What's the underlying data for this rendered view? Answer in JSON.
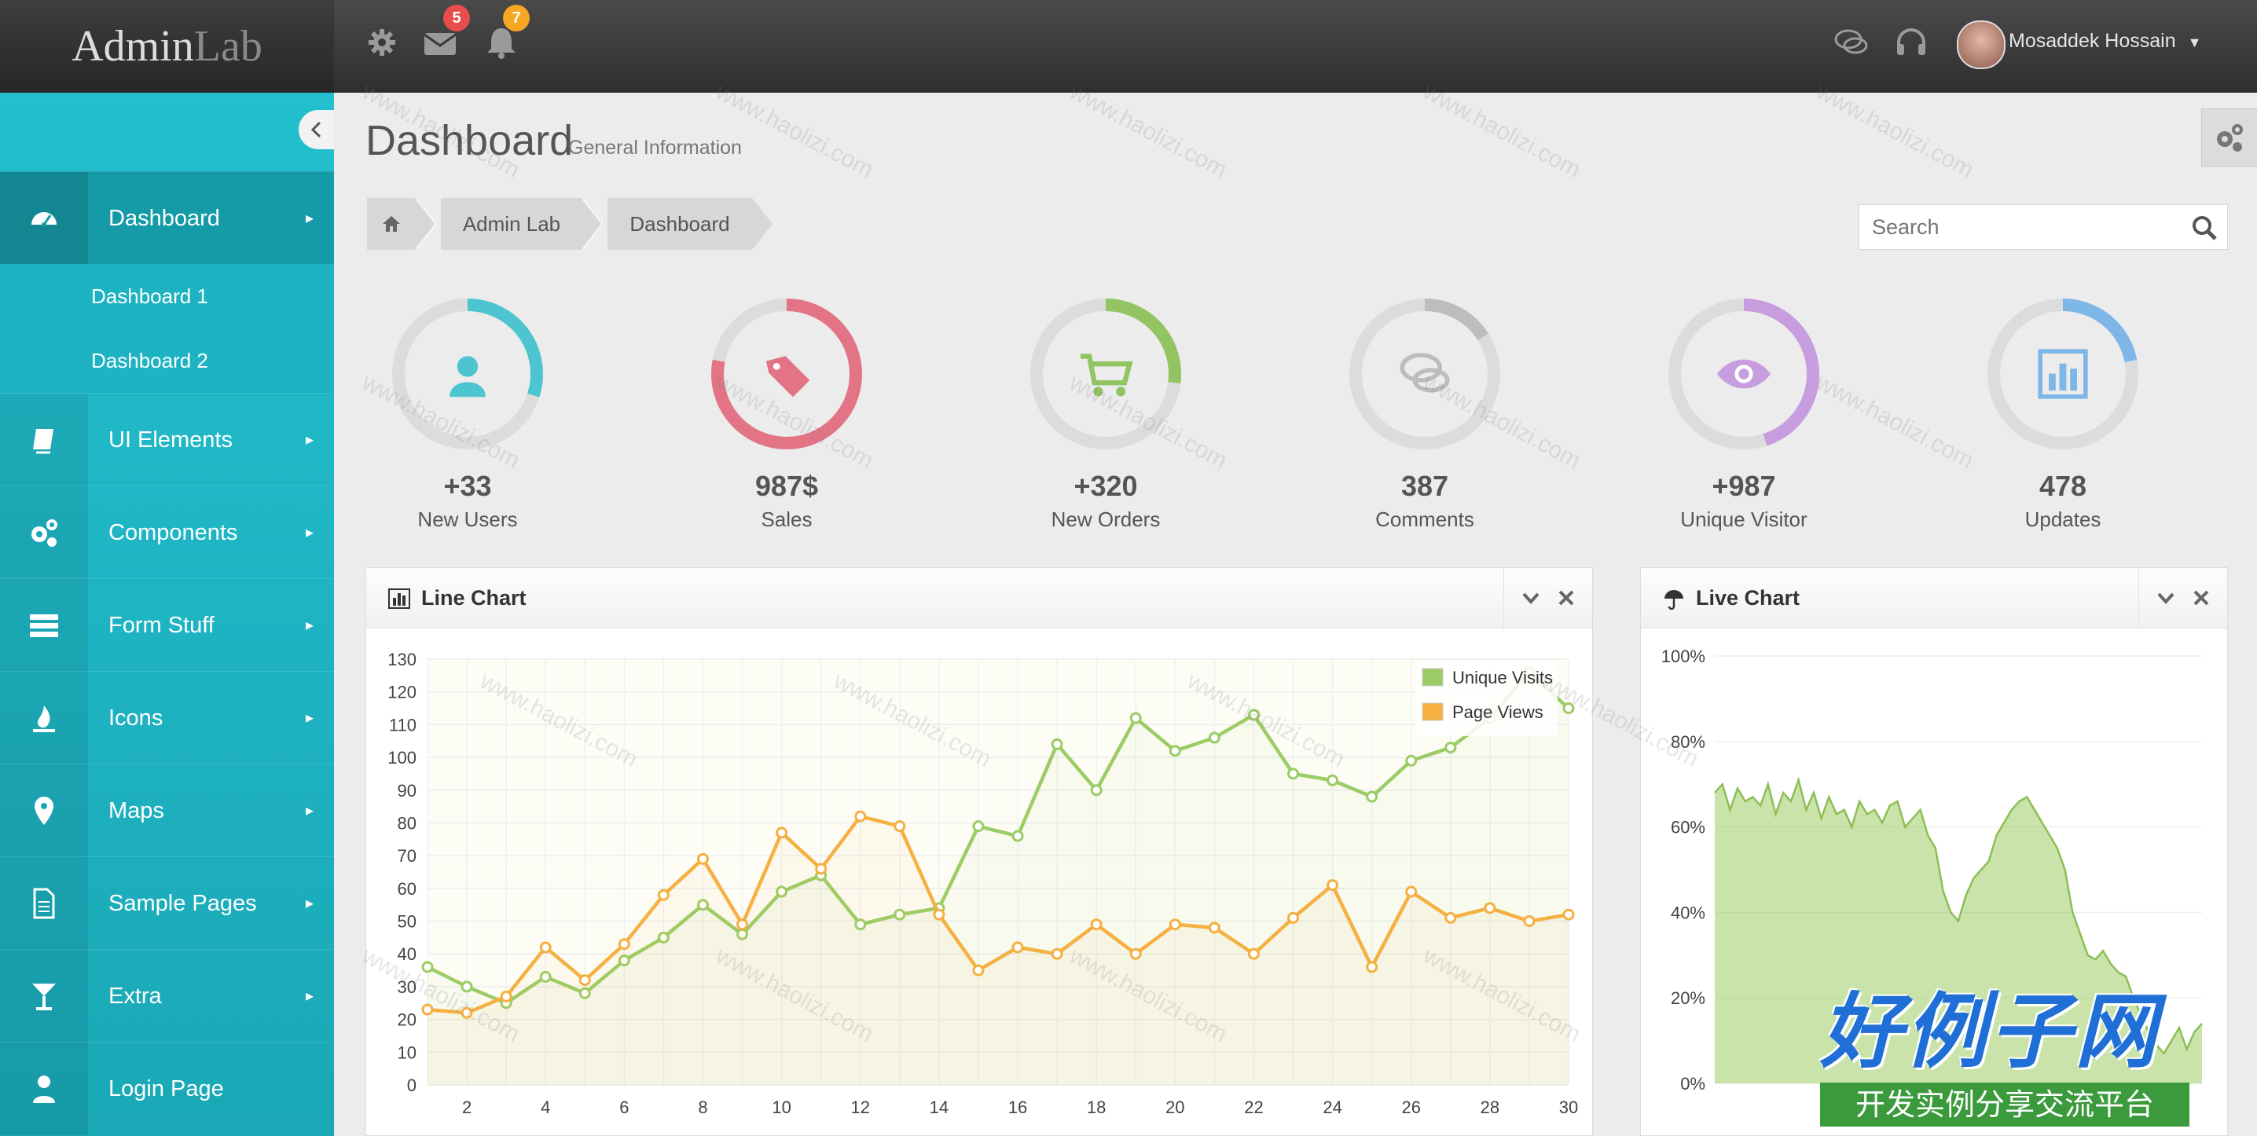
{
  "app": {
    "logo_main": "Admin",
    "logo_accent": "Lab"
  },
  "topbar": {
    "mail_count": "5",
    "notification_count": "7",
    "user_name": "Mosaddek Hossain"
  },
  "sidebar": {
    "items": [
      {
        "label": "Dashboard",
        "icon": "dashboard-icon"
      },
      {
        "label": "UI Elements",
        "icon": "book-icon"
      },
      {
        "label": "Components",
        "icon": "cogs-icon"
      },
      {
        "label": "Form Stuff",
        "icon": "tasks-icon"
      },
      {
        "label": "Icons",
        "icon": "fire-icon"
      },
      {
        "label": "Maps",
        "icon": "map-marker-icon"
      },
      {
        "label": "Sample Pages",
        "icon": "file-icon"
      },
      {
        "label": "Extra",
        "icon": "glass-icon"
      },
      {
        "label": "Login Page",
        "icon": "user-icon"
      }
    ],
    "sub_items": [
      "Dashboard 1",
      "Dashboard 2"
    ],
    "arrow": "▸"
  },
  "page": {
    "title": "Dashboard",
    "subtitle": "General Information"
  },
  "breadcrumb": [
    "Admin Lab",
    "Dashboard"
  ],
  "search": {
    "placeholder": "Search",
    "value": "Search"
  },
  "stats": [
    {
      "value": "+33",
      "label": "New Users",
      "color": "#4cc5d1",
      "fraction": 0.3
    },
    {
      "value": "987$",
      "label": "Sales",
      "color": "#e27486",
      "fraction": 0.78
    },
    {
      "value": "+320",
      "label": "New Orders",
      "color": "#92c461",
      "fraction": 0.27
    },
    {
      "value": "387",
      "label": "Comments",
      "color": "#bdbdbd",
      "fraction": 0.16
    },
    {
      "value": "+987",
      "label": "Unique Visitor",
      "color": "#c79de0",
      "fraction": 0.45
    },
    {
      "value": "478",
      "label": "Updates",
      "color": "#7fb6e8",
      "fraction": 0.22
    }
  ],
  "panels": {
    "line_title": "Line Chart",
    "live_title": "Live Chart"
  },
  "chart_data": [
    {
      "type": "line",
      "title": "Line Chart",
      "ylim": [
        0,
        130
      ],
      "xlim": [
        1,
        30
      ],
      "yticks": [
        0,
        10,
        20,
        30,
        40,
        50,
        60,
        70,
        80,
        90,
        100,
        110,
        120,
        130
      ],
      "xticks": [
        2,
        4,
        6,
        8,
        10,
        12,
        14,
        16,
        18,
        20,
        22,
        24,
        26,
        28,
        30
      ],
      "legend": "top-right",
      "grid": true,
      "series": [
        {
          "name": "Unique Visits",
          "color": "#9ccc65",
          "x": [
            1,
            2,
            3,
            4,
            5,
            6,
            7,
            8,
            9,
            10,
            11,
            12,
            13,
            14,
            15,
            16,
            17,
            18,
            19,
            20,
            21,
            22,
            23,
            24,
            25,
            26,
            27,
            28,
            29,
            30
          ],
          "y": [
            36,
            30,
            25,
            33,
            28,
            38,
            45,
            55,
            46,
            59,
            64,
            49,
            52,
            54,
            79,
            76,
            104,
            90,
            112,
            102,
            106,
            113,
            95,
            93,
            88,
            99,
            103,
            112,
            126,
            115
          ]
        },
        {
          "name": "Page Views",
          "color": "#f5b041",
          "x": [
            1,
            2,
            3,
            4,
            5,
            6,
            7,
            8,
            9,
            10,
            11,
            12,
            13,
            14,
            15,
            16,
            17,
            18,
            19,
            20,
            21,
            22,
            23,
            24,
            25,
            26,
            27,
            28,
            29,
            30
          ],
          "y": [
            23,
            22,
            27,
            42,
            32,
            43,
            58,
            69,
            49,
            77,
            66,
            82,
            79,
            52,
            35,
            42,
            40,
            49,
            40,
            49,
            48,
            40,
            51,
            61,
            36,
            59,
            51,
            54,
            50,
            52
          ]
        }
      ]
    },
    {
      "type": "area",
      "title": "Live Chart",
      "ylim": [
        0,
        100
      ],
      "yticks": [
        "0%",
        "20%",
        "40%",
        "60%",
        "80%",
        "100%"
      ],
      "grid": true,
      "series": [
        {
          "name": "",
          "color": "#9ccc65",
          "y": [
            68,
            70,
            64,
            69,
            66,
            67,
            65,
            70,
            63,
            68,
            66,
            71,
            64,
            68,
            62,
            67,
            63,
            64,
            60,
            66,
            63,
            64,
            61,
            65,
            66,
            60,
            62,
            64,
            58,
            55,
            45,
            40,
            38,
            44,
            48,
            50,
            52,
            58,
            61,
            64,
            66,
            67,
            64,
            61,
            58,
            55,
            50,
            40,
            35,
            30,
            29,
            31,
            28,
            26,
            25,
            20,
            16,
            12,
            9,
            7,
            10,
            13,
            8,
            12,
            14
          ]
        }
      ]
    }
  ],
  "watermark": {
    "main": "好例子网",
    "sub": "开发实例分享交流平台",
    "tile": "www.haolizi.com"
  }
}
